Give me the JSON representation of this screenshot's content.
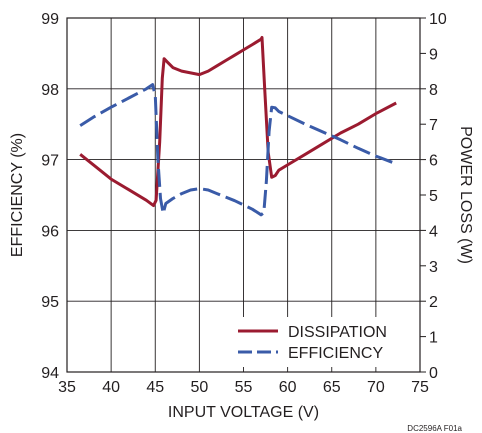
{
  "chart_data": {
    "type": "line",
    "xlabel": "INPUT VOLTAGE (V)",
    "ylabel_left": "EFFICIENCY (%)",
    "ylabel_right": "POWER LOSS (W)",
    "xlim": [
      35,
      75
    ],
    "ylim_left": [
      94,
      99
    ],
    "ylim_right": [
      0,
      10
    ],
    "x_ticks": [
      35,
      40,
      45,
      50,
      55,
      60,
      65,
      70,
      75
    ],
    "y_ticks_left": [
      94,
      95,
      96,
      97,
      98,
      99
    ],
    "y_ticks_right": [
      0,
      1,
      2,
      3,
      4,
      5,
      6,
      7,
      8,
      9,
      10
    ],
    "grid": true,
    "legend_position": "bottom-right",
    "reference_code": "DC2596A F01a",
    "series": [
      {
        "name": "DISSIPATION",
        "axis": "right",
        "color": "#9b1b30",
        "style": "solid",
        "x": [
          36.5,
          38,
          40,
          42,
          44,
          44.8,
          45.1,
          45.5,
          45.8,
          46,
          46.4,
          47,
          48,
          49,
          50,
          51,
          52,
          53,
          54,
          55,
          56,
          57,
          57.1,
          57.4,
          57.8,
          58.2,
          58.6,
          59,
          60,
          62,
          64,
          66,
          68,
          70,
          72.3
        ],
        "y": [
          6.15,
          5.85,
          5.45,
          5.15,
          4.85,
          4.7,
          4.85,
          6.5,
          8.3,
          8.85,
          8.75,
          8.6,
          8.5,
          8.45,
          8.4,
          8.5,
          8.65,
          8.8,
          8.95,
          9.1,
          9.25,
          9.4,
          9.45,
          8.0,
          6.2,
          5.5,
          5.55,
          5.7,
          5.85,
          6.15,
          6.45,
          6.75,
          7.0,
          7.3,
          7.6
        ]
      },
      {
        "name": "EFFICIENCY",
        "axis": "left",
        "color": "#3a5ba8",
        "style": "dashed",
        "x": [
          36.5,
          38,
          40,
          42,
          44,
          44.7,
          45,
          45.3,
          45.6,
          45.9,
          46.2,
          47,
          48,
          49,
          50,
          51,
          52,
          53,
          54,
          55,
          56,
          57,
          57.3,
          57.6,
          57.9,
          58.2,
          58.6,
          59,
          60,
          62,
          64,
          66,
          68,
          70,
          72.3
        ],
        "y": [
          97.48,
          97.6,
          97.74,
          97.87,
          98.0,
          98.06,
          97.9,
          97.0,
          96.45,
          96.24,
          96.38,
          96.45,
          96.52,
          96.57,
          96.59,
          96.57,
          96.52,
          96.47,
          96.42,
          96.36,
          96.3,
          96.22,
          96.25,
          96.7,
          97.4,
          97.74,
          97.73,
          97.68,
          97.62,
          97.5,
          97.39,
          97.28,
          97.16,
          97.05,
          96.94
        ]
      }
    ]
  }
}
